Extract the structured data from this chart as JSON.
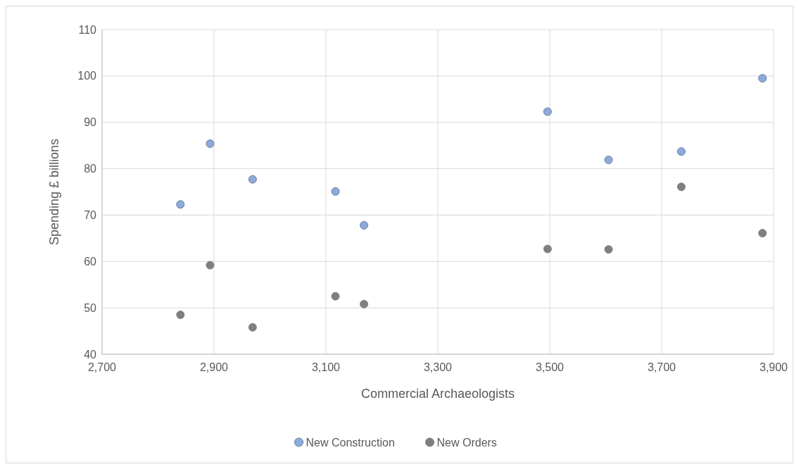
{
  "chart_data": {
    "type": "scatter",
    "xlabel": "Commercial Archaeologists",
    "ylabel": "Spending £ billions",
    "series": [
      {
        "name": "New Construction",
        "color": "#8faadc",
        "x": [
          2840,
          2893,
          2969,
          3117,
          3168,
          3496,
          3605,
          3735,
          3880
        ],
        "values": [
          72.3,
          85.4,
          77.7,
          75.1,
          67.8,
          92.3,
          81.9,
          83.7,
          99.5
        ]
      },
      {
        "name": "New Orders",
        "color": "#7f7f7f",
        "x": [
          2840,
          2893,
          2969,
          3117,
          3168,
          3496,
          3605,
          3735,
          3880
        ],
        "values": [
          48.5,
          59.2,
          45.8,
          52.5,
          50.8,
          62.7,
          62.6,
          76.1,
          66.1
        ]
      }
    ],
    "xlim": [
      2700,
      3900
    ],
    "xticks": [
      {
        "value": 2700,
        "label": "2,700"
      },
      {
        "value": 2900,
        "label": "2,900"
      },
      {
        "value": 3100,
        "label": "3,100"
      },
      {
        "value": 3300,
        "label": "3,300"
      },
      {
        "value": 3500,
        "label": "3,500"
      },
      {
        "value": 3700,
        "label": "3,700"
      },
      {
        "value": 3900,
        "label": "3,900"
      }
    ],
    "ylim": [
      40,
      110
    ],
    "yticks": [
      40,
      50,
      60,
      70,
      80,
      90,
      100,
      110
    ],
    "grid": true,
    "legend": "bottom",
    "marker": "circle"
  }
}
